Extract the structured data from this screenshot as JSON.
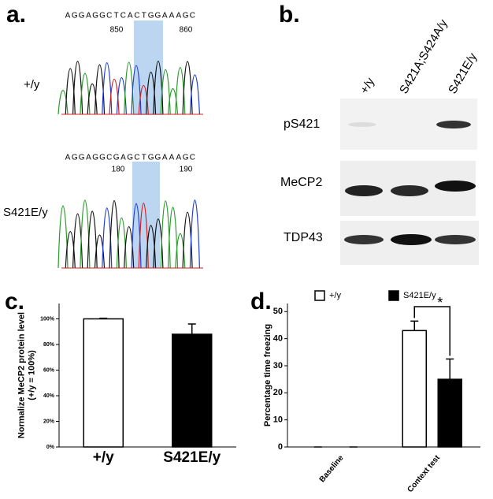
{
  "panel_a": {
    "label": "a.",
    "rows": [
      {
        "name": "+/y",
        "sequence": [
          "A",
          "G",
          "G",
          "A",
          "G",
          "G",
          "C",
          "T",
          "C",
          "A",
          "C",
          "T",
          "G",
          "G",
          "A",
          "A",
          "A",
          "G",
          "C"
        ],
        "positions": [
          "850",
          "860"
        ]
      },
      {
        "name": "S421E/y",
        "sequence": [
          "A",
          "G",
          "G",
          "A",
          "G",
          "G",
          "C",
          "G",
          "A",
          "G",
          "C",
          "T",
          "G",
          "G",
          "A",
          "A",
          "A",
          "G",
          "C"
        ],
        "positions": [
          "180",
          "190"
        ]
      }
    ]
  },
  "panel_b": {
    "label": "b.",
    "columns": [
      "+/y",
      "S421A;S424A/y",
      "S421E/y"
    ],
    "rows": [
      "pS421",
      "MeCP2",
      "TDP43"
    ]
  },
  "chart_data": [
    {
      "type": "bar",
      "panel": "c.",
      "ylabel": [
        "Normalize MeCP2 protein level",
        "(+/y = 100%)"
      ],
      "categories": [
        "+/y",
        "S421E/y"
      ],
      "values": [
        100,
        88
      ],
      "errors": [
        0.5,
        8
      ],
      "colors": [
        "#ffffff",
        "#000000"
      ],
      "ylim": [
        0,
        112
      ],
      "yticks": [
        {
          "value": 0,
          "label": "0%"
        },
        {
          "value": 20,
          "label": "20%"
        },
        {
          "value": 40,
          "label": "40%"
        },
        {
          "value": 60,
          "label": "60%"
        },
        {
          "value": 80,
          "label": "80%"
        },
        {
          "value": 100,
          "label": "100%"
        }
      ]
    },
    {
      "type": "bar",
      "panel": "d.",
      "ylabel": [
        "Percentage time freezing"
      ],
      "categories": [
        "Baseline",
        "Context test"
      ],
      "series": [
        {
          "name": "+/y",
          "color": "#ffffff",
          "values": [
            0,
            43
          ],
          "errors": [
            0,
            3.5
          ]
        },
        {
          "name": "S421E/y",
          "color": "#000000",
          "values": [
            0,
            25
          ],
          "errors": [
            0,
            7.5
          ]
        }
      ],
      "annotation": "*",
      "ylim": [
        0,
        53
      ],
      "yticks": [
        0,
        10,
        20,
        30,
        40,
        50
      ]
    }
  ]
}
